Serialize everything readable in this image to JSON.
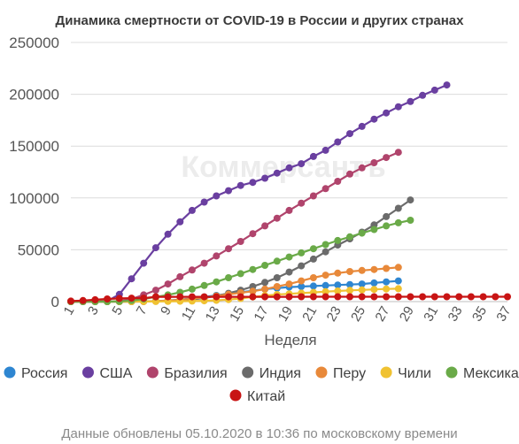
{
  "watermark": "Коммерсантъ",
  "footnote": "Данные обновлены 05.10.2020 в 10:36 по московскому времени",
  "chart_data": {
    "type": "line",
    "title": "Динамика смертности от COVID-19 в России и других странах",
    "xlabel": "Неделя",
    "ylabel": "",
    "xlim": [
      1,
      37
    ],
    "ylim": [
      0,
      250000
    ],
    "xticks": [
      1,
      3,
      5,
      7,
      9,
      11,
      13,
      15,
      17,
      19,
      21,
      23,
      25,
      27,
      29,
      31,
      33,
      35,
      37
    ],
    "yticks": [
      0,
      50000,
      100000,
      150000,
      200000,
      250000
    ],
    "ytick_labels": [
      "0",
      "50000",
      "100000",
      "150000",
      "200000",
      "250000"
    ],
    "grid": "horizontal",
    "legend_position": "bottom",
    "series": [
      {
        "name": "Россия",
        "color": "#2e86d1",
        "start_week": 1,
        "values": [
          0,
          0,
          0,
          0,
          0,
          50,
          200,
          500,
          1000,
          2000,
          3000,
          4500,
          6000,
          7500,
          9000,
          10500,
          12000,
          13000,
          14000,
          14500,
          15000,
          15500,
          16000,
          16500,
          17000,
          18000,
          19000,
          20000
        ]
      },
      {
        "name": "США",
        "color": "#6a3fa0",
        "start_week": 1,
        "values": [
          0,
          0,
          0,
          500,
          7000,
          22000,
          37000,
          52000,
          65000,
          77000,
          88000,
          96000,
          102000,
          107000,
          112000,
          115000,
          119000,
          124000,
          129000,
          133000,
          140000,
          146000,
          154000,
          162000,
          169000,
          176000,
          182000,
          188000,
          193000,
          199000,
          204000,
          209000
        ]
      },
      {
        "name": "Бразилия",
        "color": "#b0446c",
        "start_week": 1,
        "values": [
          0,
          0,
          0,
          0,
          500,
          2500,
          6500,
          11000,
          17000,
          24000,
          30500,
          37000,
          44000,
          51000,
          58000,
          65500,
          73000,
          80500,
          88000,
          95000,
          102000,
          109000,
          116000,
          123000,
          129000,
          134000,
          139000,
          144000
        ]
      },
      {
        "name": "Индия",
        "color": "#6b6b6b",
        "start_week": 1,
        "values": [
          0,
          0,
          0,
          0,
          0,
          0,
          100,
          300,
          600,
          1200,
          2000,
          3500,
          5500,
          8000,
          11000,
          14500,
          18500,
          23000,
          28500,
          34500,
          41000,
          48000,
          54500,
          60500,
          67000,
          74000,
          82000,
          90000,
          98000
        ]
      },
      {
        "name": "Перу",
        "color": "#e8893a",
        "start_week": 1,
        "values": [
          0,
          0,
          0,
          0,
          0,
          0,
          100,
          400,
          900,
          1700,
          2800,
          4000,
          5500,
          7000,
          8500,
          10000,
          12000,
          14500,
          17000,
          20000,
          23000,
          25500,
          27500,
          29000,
          30000,
          31000,
          32000,
          33000
        ]
      },
      {
        "name": "Чили",
        "color": "#f0c232",
        "start_week": 1,
        "values": [
          0,
          0,
          0,
          0,
          0,
          0,
          50,
          100,
          200,
          300,
          500,
          800,
          1200,
          2000,
          3000,
          4500,
          5800,
          6800,
          7500,
          8200,
          8900,
          9600,
          10200,
          10800,
          11300,
          11800,
          12200,
          12500
        ]
      },
      {
        "name": "Мексика",
        "color": "#6aaa48",
        "start_week": 1,
        "values": [
          0,
          0,
          0,
          0,
          200,
          1000,
          2500,
          4500,
          6500,
          9000,
          12000,
          15500,
          19000,
          23000,
          27000,
          31000,
          35000,
          39000,
          43000,
          47000,
          51000,
          55000,
          59000,
          62500,
          66000,
          69500,
          73000,
          76000,
          78500
        ]
      },
      {
        "name": "Китай",
        "color": "#c81414",
        "start_week": 1,
        "values": [
          500,
          1000,
          1800,
          2600,
          3100,
          3300,
          3300,
          4600,
          4600,
          4600,
          4600,
          4600,
          4600,
          4600,
          4600,
          4600,
          4600,
          4600,
          4600,
          4700,
          4700,
          4700,
          4700,
          4700,
          4700,
          4700,
          4700,
          4700,
          4700,
          4700,
          4700,
          4700,
          4700,
          4700,
          4700,
          4700,
          4700
        ]
      }
    ]
  }
}
